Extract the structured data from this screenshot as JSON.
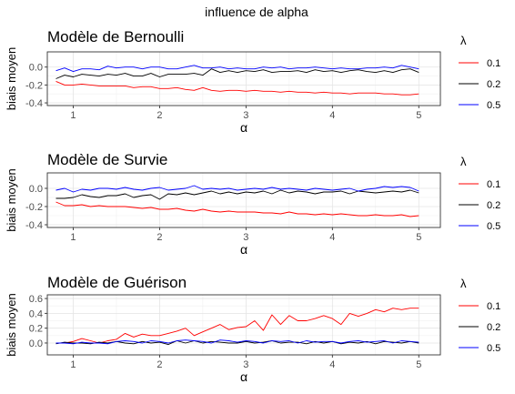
{
  "figure_title": "influence de alpha",
  "chart_data": [
    {
      "type": "line",
      "title": "Modèle de Bernoulli",
      "xlabel": "α",
      "ylabel": "biais moyen",
      "xlim": [
        0.7,
        5.25
      ],
      "ylim": [
        -0.43,
        0.17
      ],
      "xticks": [
        1,
        2,
        3,
        4,
        5
      ],
      "yticks": [
        -0.4,
        -0.2,
        0.0
      ],
      "ytick_labels": [
        "-0.4",
        "-0.2",
        "0.0"
      ],
      "grid": true,
      "legend": {
        "title": "λ",
        "placement": "right"
      },
      "x": [
        0.8,
        0.9,
        1.0,
        1.1,
        1.2,
        1.3,
        1.4,
        1.5,
        1.6,
        1.7,
        1.8,
        1.9,
        2.0,
        2.1,
        2.2,
        2.3,
        2.4,
        2.5,
        2.6,
        2.7,
        2.8,
        2.9,
        3.0,
        3.1,
        3.2,
        3.3,
        3.4,
        3.5,
        3.6,
        3.7,
        3.8,
        3.9,
        4.0,
        4.1,
        4.2,
        4.3,
        4.4,
        4.5,
        4.6,
        4.7,
        4.8,
        4.9,
        5.0
      ],
      "series": [
        {
          "name": "0.1",
          "color": "#ff0000",
          "values": [
            -0.16,
            -0.2,
            -0.2,
            -0.19,
            -0.2,
            -0.21,
            -0.21,
            -0.21,
            -0.21,
            -0.23,
            -0.22,
            -0.22,
            -0.24,
            -0.24,
            -0.23,
            -0.25,
            -0.26,
            -0.23,
            -0.26,
            -0.27,
            -0.26,
            -0.26,
            -0.27,
            -0.26,
            -0.27,
            -0.27,
            -0.28,
            -0.27,
            -0.28,
            -0.28,
            -0.29,
            -0.28,
            -0.29,
            -0.29,
            -0.3,
            -0.29,
            -0.29,
            -0.29,
            -0.3,
            -0.3,
            -0.31,
            -0.31,
            -0.3
          ]
        },
        {
          "name": "0.2",
          "color": "#000000",
          "values": [
            -0.13,
            -0.09,
            -0.11,
            -0.08,
            -0.09,
            -0.1,
            -0.08,
            -0.09,
            -0.07,
            -0.1,
            -0.1,
            -0.07,
            -0.11,
            -0.08,
            -0.08,
            -0.08,
            -0.07,
            -0.09,
            -0.02,
            -0.06,
            -0.04,
            -0.06,
            -0.04,
            -0.05,
            -0.03,
            -0.06,
            -0.05,
            -0.05,
            -0.04,
            -0.06,
            -0.03,
            -0.05,
            -0.04,
            -0.06,
            -0.04,
            -0.03,
            -0.05,
            -0.06,
            -0.04,
            -0.06,
            -0.03,
            -0.02,
            -0.06
          ]
        },
        {
          "name": "0.5",
          "color": "#0000ff",
          "values": [
            -0.04,
            -0.01,
            -0.05,
            -0.02,
            -0.02,
            -0.03,
            0.01,
            -0.01,
            0.0,
            0.0,
            -0.02,
            0.0,
            0.0,
            -0.02,
            -0.02,
            0.0,
            0.02,
            -0.01,
            -0.01,
            0.0,
            -0.02,
            -0.01,
            -0.02,
            -0.02,
            0.0,
            -0.01,
            0.0,
            -0.02,
            -0.01,
            -0.01,
            0.0,
            -0.01,
            -0.02,
            -0.01,
            -0.02,
            -0.02,
            -0.01,
            -0.01,
            0.0,
            -0.01,
            0.02,
            0.0,
            -0.02
          ]
        }
      ]
    },
    {
      "type": "line",
      "title": "Modèle de Survie",
      "xlabel": "α",
      "ylabel": "biais moyen",
      "xlim": [
        0.7,
        5.25
      ],
      "ylim": [
        -0.43,
        0.17
      ],
      "xticks": [
        1,
        2,
        3,
        4,
        5
      ],
      "yticks": [
        -0.4,
        -0.2,
        0.0
      ],
      "ytick_labels": [
        "-0.4",
        "-0.2",
        "0.0"
      ],
      "grid": true,
      "legend": {
        "title": "λ",
        "placement": "right"
      },
      "x": [
        0.8,
        0.9,
        1.0,
        1.1,
        1.2,
        1.3,
        1.4,
        1.5,
        1.6,
        1.7,
        1.8,
        1.9,
        2.0,
        2.1,
        2.2,
        2.3,
        2.4,
        2.5,
        2.6,
        2.7,
        2.8,
        2.9,
        3.0,
        3.1,
        3.2,
        3.3,
        3.4,
        3.5,
        3.6,
        3.7,
        3.8,
        3.9,
        4.0,
        4.1,
        4.2,
        4.3,
        4.4,
        4.5,
        4.6,
        4.7,
        4.8,
        4.9,
        5.0
      ],
      "series": [
        {
          "name": "0.1",
          "color": "#ff0000",
          "values": [
            -0.15,
            -0.19,
            -0.19,
            -0.18,
            -0.2,
            -0.19,
            -0.2,
            -0.2,
            -0.2,
            -0.21,
            -0.22,
            -0.21,
            -0.23,
            -0.23,
            -0.22,
            -0.24,
            -0.25,
            -0.23,
            -0.25,
            -0.26,
            -0.25,
            -0.26,
            -0.26,
            -0.26,
            -0.27,
            -0.27,
            -0.28,
            -0.26,
            -0.28,
            -0.28,
            -0.29,
            -0.28,
            -0.29,
            -0.28,
            -0.29,
            -0.3,
            -0.3,
            -0.29,
            -0.3,
            -0.3,
            -0.29,
            -0.31,
            -0.3
          ]
        },
        {
          "name": "0.2",
          "color": "#000000",
          "values": [
            -0.11,
            -0.11,
            -0.1,
            -0.07,
            -0.09,
            -0.1,
            -0.08,
            -0.08,
            -0.06,
            -0.1,
            -0.08,
            -0.07,
            -0.12,
            -0.06,
            -0.07,
            -0.05,
            -0.07,
            -0.05,
            -0.03,
            -0.06,
            -0.04,
            -0.06,
            -0.04,
            -0.05,
            -0.03,
            -0.06,
            -0.02,
            -0.05,
            -0.03,
            -0.04,
            -0.06,
            -0.04,
            -0.04,
            -0.03,
            -0.06,
            -0.03,
            -0.04,
            -0.05,
            -0.04,
            -0.03,
            -0.04,
            -0.02,
            -0.05
          ]
        },
        {
          "name": "0.5",
          "color": "#0000ff",
          "values": [
            -0.02,
            0.0,
            -0.04,
            -0.01,
            -0.02,
            0.0,
            0.0,
            -0.01,
            0.01,
            -0.01,
            -0.02,
            0.0,
            0.01,
            -0.02,
            -0.01,
            0.0,
            0.03,
            -0.01,
            0.0,
            -0.01,
            0.0,
            -0.02,
            -0.01,
            0.0,
            -0.01,
            0.01,
            -0.01,
            0.0,
            -0.01,
            -0.02,
            0.0,
            -0.01,
            -0.02,
            -0.01,
            0.0,
            -0.03,
            -0.01,
            0.0,
            0.02,
            0.01,
            0.02,
            0.01,
            -0.03
          ]
        }
      ]
    },
    {
      "type": "line",
      "title": "Modèle de Guérison",
      "xlabel": "α",
      "ylabel": "biais moyen",
      "xlim": [
        0.7,
        5.25
      ],
      "ylim": [
        -0.16,
        0.65
      ],
      "xticks": [
        1,
        2,
        3,
        4,
        5
      ],
      "yticks": [
        0.0,
        0.2,
        0.4,
        0.6
      ],
      "ytick_labels": [
        "0.0",
        "0.2",
        "0.4",
        "0.6"
      ],
      "grid": true,
      "legend": {
        "title": "λ",
        "placement": "right"
      },
      "x": [
        0.8,
        0.9,
        1.0,
        1.1,
        1.2,
        1.3,
        1.4,
        1.5,
        1.6,
        1.7,
        1.8,
        1.9,
        2.0,
        2.1,
        2.2,
        2.3,
        2.4,
        2.5,
        2.6,
        2.7,
        2.8,
        2.9,
        3.0,
        3.1,
        3.2,
        3.3,
        3.4,
        3.5,
        3.6,
        3.7,
        3.8,
        3.9,
        4.0,
        4.1,
        4.2,
        4.3,
        4.4,
        4.5,
        4.6,
        4.7,
        4.8,
        4.9,
        5.0
      ],
      "series": [
        {
          "name": "0.1",
          "color": "#ff0000",
          "values": [
            0.0,
            0.0,
            0.02,
            0.06,
            0.03,
            0.0,
            0.03,
            0.05,
            0.13,
            0.08,
            0.12,
            0.1,
            0.1,
            0.13,
            0.16,
            0.2,
            0.1,
            0.15,
            0.2,
            0.25,
            0.18,
            0.21,
            0.22,
            0.3,
            0.17,
            0.38,
            0.25,
            0.37,
            0.3,
            0.3,
            0.33,
            0.37,
            0.33,
            0.25,
            0.4,
            0.36,
            0.4,
            0.45,
            0.42,
            0.47,
            0.45,
            0.47,
            0.47
          ]
        },
        {
          "name": "0.2",
          "color": "#000000",
          "values": [
            -0.01,
            0.01,
            0.0,
            0.0,
            -0.01,
            0.01,
            0.0,
            0.02,
            0.0,
            -0.01,
            0.02,
            0.0,
            0.01,
            -0.02,
            0.03,
            0.0,
            0.03,
            0.0,
            0.02,
            0.01,
            0.0,
            0.0,
            0.02,
            0.0,
            0.01,
            0.03,
            0.0,
            0.01,
            0.01,
            -0.01,
            0.02,
            0.0,
            0.02,
            -0.01,
            0.01,
            0.0,
            0.02,
            -0.01,
            0.02,
            0.01,
            0.0,
            0.02,
            0.0
          ]
        },
        {
          "name": "0.5",
          "color": "#0000ff",
          "values": [
            0.0,
            0.0,
            -0.01,
            0.01,
            0.0,
            0.0,
            -0.01,
            0.02,
            0.03,
            0.02,
            0.0,
            0.03,
            0.02,
            0.0,
            0.03,
            0.04,
            0.03,
            0.02,
            0.0,
            0.04,
            0.03,
            0.01,
            0.03,
            0.02,
            0.0,
            0.03,
            0.02,
            0.03,
            0.0,
            0.03,
            0.01,
            0.02,
            0.02,
            0.0,
            0.02,
            0.03,
            0.01,
            0.02,
            0.03,
            0.0,
            0.03,
            0.02,
            0.01
          ]
        }
      ]
    }
  ]
}
